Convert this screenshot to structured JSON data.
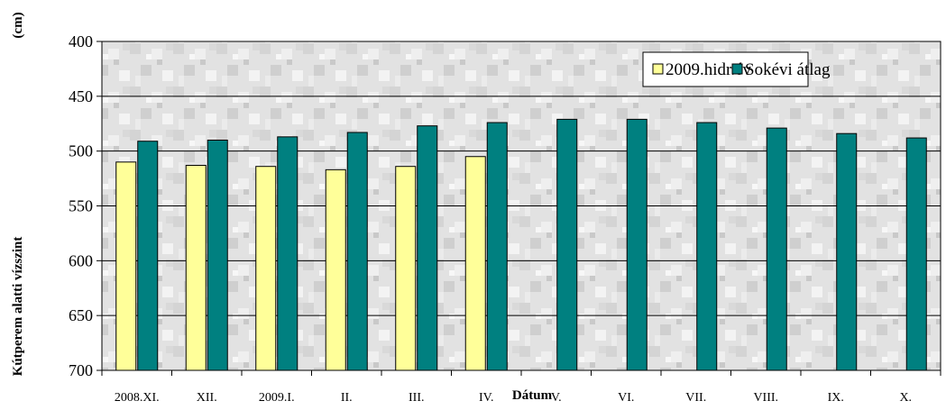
{
  "chart_data": {
    "type": "bar",
    "title": "",
    "xlabel": "Dátum",
    "ylabel": "Kútperem alatti vízszint",
    "yunit": "(cm)",
    "ylim": [
      400,
      700
    ],
    "y_inverted": true,
    "yticks": [
      "400",
      "450",
      "500",
      "550",
      "600",
      "650",
      "700"
    ],
    "grid": true,
    "legend_position": "top-right",
    "categories": [
      "2008.XI.",
      "XII.",
      "2009.I.",
      "II.",
      "III.",
      "IV.",
      "V.",
      "VI.",
      "VII.",
      "VIII.",
      "IX.",
      "X."
    ],
    "series": [
      {
        "name": "2009.hidr.év",
        "color": "#FFFF99",
        "values": [
          510,
          513,
          514,
          517,
          514,
          505,
          null,
          null,
          null,
          null,
          null,
          null
        ]
      },
      {
        "name": "Sokévi átlag",
        "color": "#008080",
        "values": [
          491,
          490,
          487,
          483,
          477,
          474,
          471,
          471,
          474,
          479,
          484,
          488
        ]
      }
    ]
  }
}
